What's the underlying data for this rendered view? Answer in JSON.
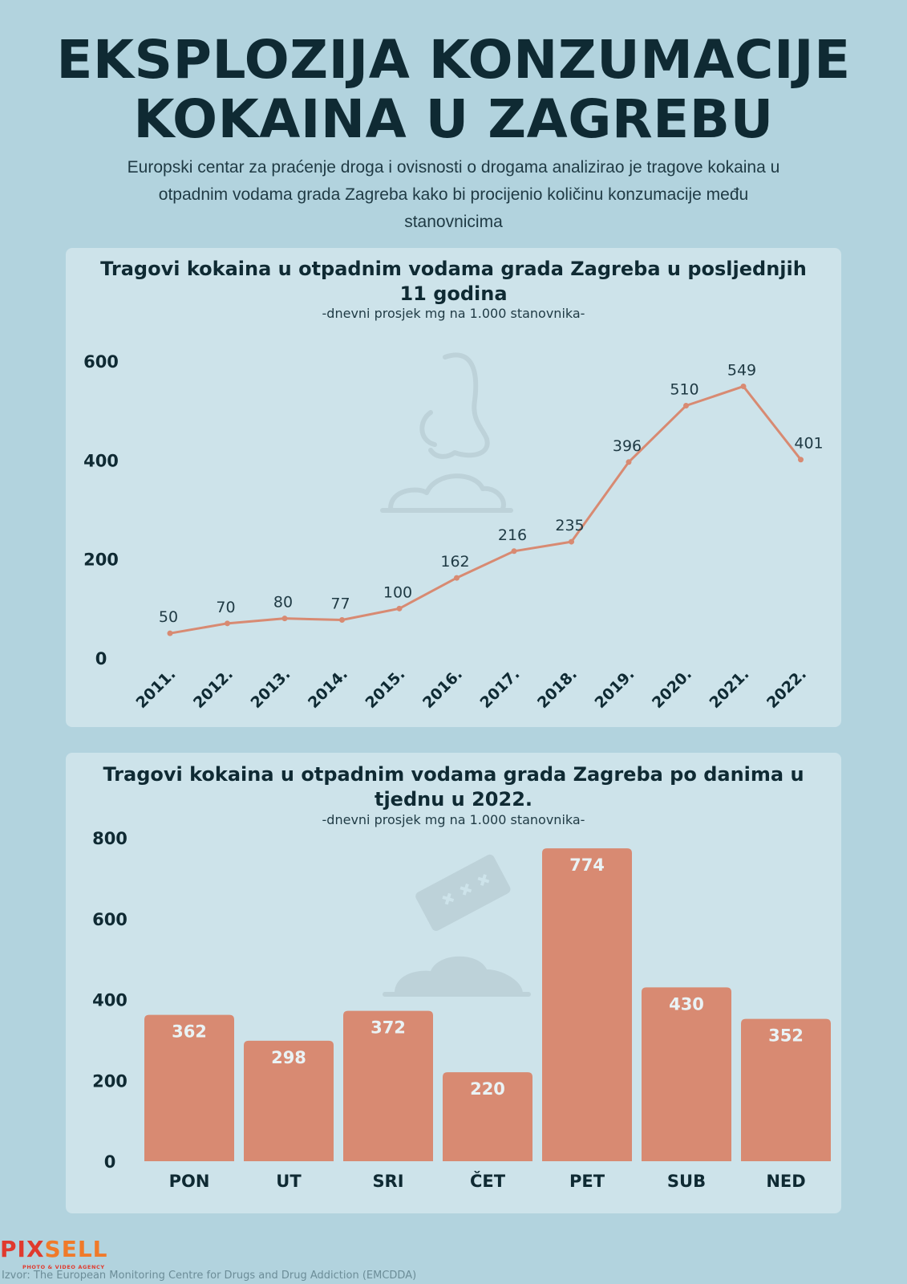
{
  "header": {
    "title_line1": "EKSPLOZIJA KONZUMACIJE",
    "title_line2": "KOKAINA U ZAGREBU",
    "intro_line1": "Europski centar za praćenje droga i ovisnosti o drogama analizirao je tragove kokaina u",
    "intro_line2": "otpadnim vodama grada Zagreba kako bi procijenio količinu konzumacije među",
    "intro_line3": "stanovnicima"
  },
  "colors": {
    "background": "#b2d3de",
    "panel": "#cde3ea",
    "accent": "#d88a72",
    "text_dark": "#0f2a33"
  },
  "chart_data": [
    {
      "type": "line",
      "title_line1": "Tragovi kokaina u otpadnim vodama grada Zagreba u posljednjih",
      "title_line2": "11 godina",
      "subtitle": "-dnevni prosjek mg na 1.000 stanovnika-",
      "x": [
        "2011.",
        "2012.",
        "2013.",
        "2014.",
        "2015.",
        "2016.",
        "2017.",
        "2018.",
        "2019.",
        "2020.",
        "2021.",
        "2022."
      ],
      "values": [
        50,
        70,
        80,
        77,
        100,
        162,
        216,
        235,
        396,
        510,
        549,
        401
      ],
      "y_ticks": [
        0,
        200,
        400,
        600
      ],
      "ylim": [
        0,
        600
      ],
      "grid": false,
      "legend": "none",
      "decoration_icon": "nose-icon"
    },
    {
      "type": "bar",
      "title_line1": "Tragovi kokaina u otpadnim vodama grada Zagreba po danima u",
      "title_line2": "tjednu u 2022.",
      "subtitle": "-dnevni prosjek mg na 1.000 stanovnika-",
      "categories": [
        "PON",
        "UT",
        "SRI",
        "ČET",
        "PET",
        "SUB",
        "NED"
      ],
      "values": [
        362,
        298,
        372,
        220,
        774,
        430,
        352
      ],
      "y_ticks": [
        0,
        200,
        400,
        600,
        800
      ],
      "ylim": [
        0,
        800
      ],
      "grid": false,
      "legend": "none",
      "decoration_icon": "razor-blade-icon"
    }
  ],
  "footer": {
    "brand_part1": "PIX",
    "brand_part2": "SELL",
    "brand_tagline": "PHOTO & VIDEO AGENCY",
    "source": "Izvor: The European Monitoring Centre for Drugs and Drug Addiction (EMCDDA)"
  }
}
